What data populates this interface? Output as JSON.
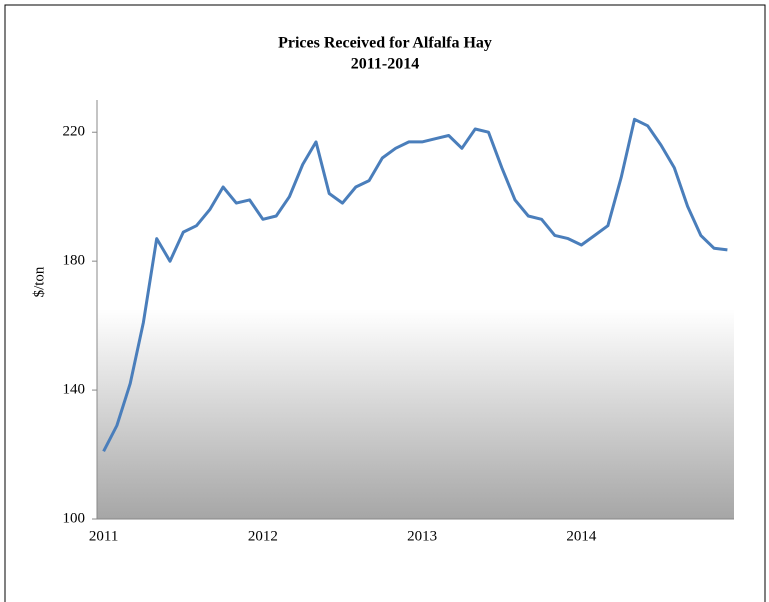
{
  "chart_data": {
    "type": "line",
    "title": "Prices Received for Alfalfa Hay",
    "subtitle": "2011-2014",
    "y_label": "$/ton",
    "categories": [
      "2011",
      null,
      null,
      null,
      null,
      null,
      null,
      null,
      null,
      null,
      null,
      null,
      "2012",
      null,
      null,
      null,
      null,
      null,
      null,
      null,
      null,
      null,
      null,
      null,
      "2013",
      null,
      null,
      null,
      null,
      null,
      null,
      null,
      null,
      null,
      null,
      null,
      "2014",
      null,
      null,
      null,
      null,
      null,
      null,
      null,
      null,
      null,
      null,
      null
    ],
    "series": [
      {
        "color": "#4a7ebb",
        "values": [
          121,
          129,
          142,
          161,
          187,
          180,
          189,
          191,
          196,
          203,
          198,
          199,
          193,
          194,
          200,
          210,
          217,
          201,
          198,
          203,
          205,
          212,
          215,
          217,
          217,
          218,
          219,
          215,
          221,
          220,
          209,
          199,
          194,
          193,
          188,
          187,
          185,
          188,
          191,
          206,
          224,
          222,
          216,
          209,
          197,
          188,
          184,
          183.5
        ]
      }
    ],
    "ylim": [
      100,
      230
    ],
    "yticks": [
      100,
      140,
      180,
      220
    ],
    "grid": false
  }
}
